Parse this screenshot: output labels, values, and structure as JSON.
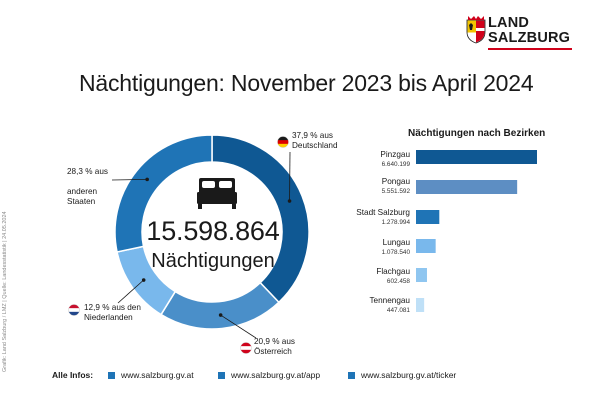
{
  "brand": {
    "line1": "LAND",
    "line2": "SALZBURG"
  },
  "title": "Nächtigungen: November 2023 bis April 2024",
  "credit": "Grafik: Land Salzburg / LMZ | Quelle: Landesstatistik | 24.05.2024",
  "chart_data": [
    {
      "type": "pie",
      "variant": "donut",
      "center_value": "15.598.864",
      "center_label": "Nächtigungen",
      "slices": [
        {
          "label": "Deutschland",
          "pct_text": "37,9 % aus",
          "name_text": "Deutschland",
          "value": 37.9,
          "color": "#0f5893",
          "flag": "de"
        },
        {
          "label": "Österreich",
          "pct_text": "20,9 % aus",
          "name_text": "Österreich",
          "value": 20.9,
          "color": "#4a8fc9",
          "flag": "at"
        },
        {
          "label": "Niederlanden",
          "pct_text": "12,9 % aus den",
          "name_text": "Niederlanden",
          "value": 12.9,
          "color": "#79b8ec",
          "flag": "nl"
        },
        {
          "label": "anderen Staaten",
          "pct_text": "28,3 % aus",
          "name_text": "anderen\nStaaten",
          "value": 28.3,
          "color": "#1f74b6",
          "flag": ""
        }
      ]
    },
    {
      "type": "bar",
      "orientation": "horizontal",
      "title": "Nächtigungen nach Bezirken",
      "categories": [
        "Pinzgau",
        "Pongau",
        "Stadt Salzburg",
        "Lungau",
        "Flachgau",
        "Tennengau"
      ],
      "values": [
        6640199,
        5551592,
        1278994,
        1078540,
        602458,
        447081
      ],
      "value_labels": [
        "6.640.199",
        "5.551.592",
        "1.278.994",
        "1.078.540",
        "602.458",
        "447.081"
      ],
      "colors": [
        "#0f5893",
        "#5d8ec3",
        "#1f74b6",
        "#79b8ec",
        "#8fc6f0",
        "#bfe0f7"
      ],
      "xlim": [
        0,
        6640199
      ]
    }
  ],
  "footer": {
    "label": "Alle Infos:",
    "links": [
      "www.salzburg.gv.at",
      "www.salzburg.gv.at/app",
      "www.salzburg.gv.at/ticker"
    ],
    "square_color": "#1f74b6"
  }
}
